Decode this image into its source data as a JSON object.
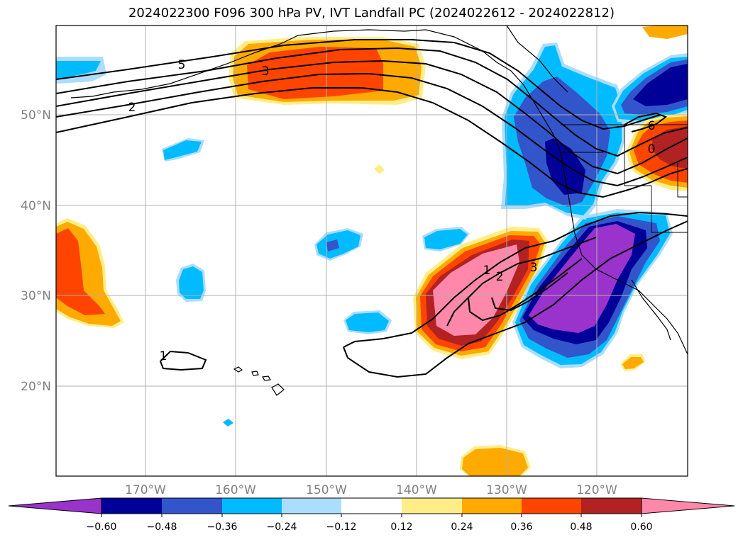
{
  "title": "2024022300 F096 300 hPa PV, IVT Landfall PC (2024022612 - 2024022812)",
  "lat_labels": [
    "50°N",
    "40°N",
    "30°N",
    "20°N"
  ],
  "lon_labels": [
    "170°W",
    "160°W",
    "150°W",
    "140°W",
    "130°W",
    "120°W"
  ],
  "colorbar": {
    "colors": [
      "#9933cc",
      "#000099",
      "#3355cc",
      "#00bbff",
      "#aaddff",
      "#ffffff",
      "#ffee88",
      "#ffaa00",
      "#ff4400",
      "#b22222",
      "#ff88aa",
      "#ff88aa"
    ],
    "tick_labels": [
      "−0.60",
      "−0.48",
      "−0.36",
      "−0.24",
      "−0.12",
      "0.12",
      "0.24",
      "0.36",
      "0.48",
      "0.60"
    ]
  },
  "contour_labels": [
    "5",
    "3",
    "2",
    "1",
    "2",
    "3",
    "1",
    "6",
    "0"
  ]
}
